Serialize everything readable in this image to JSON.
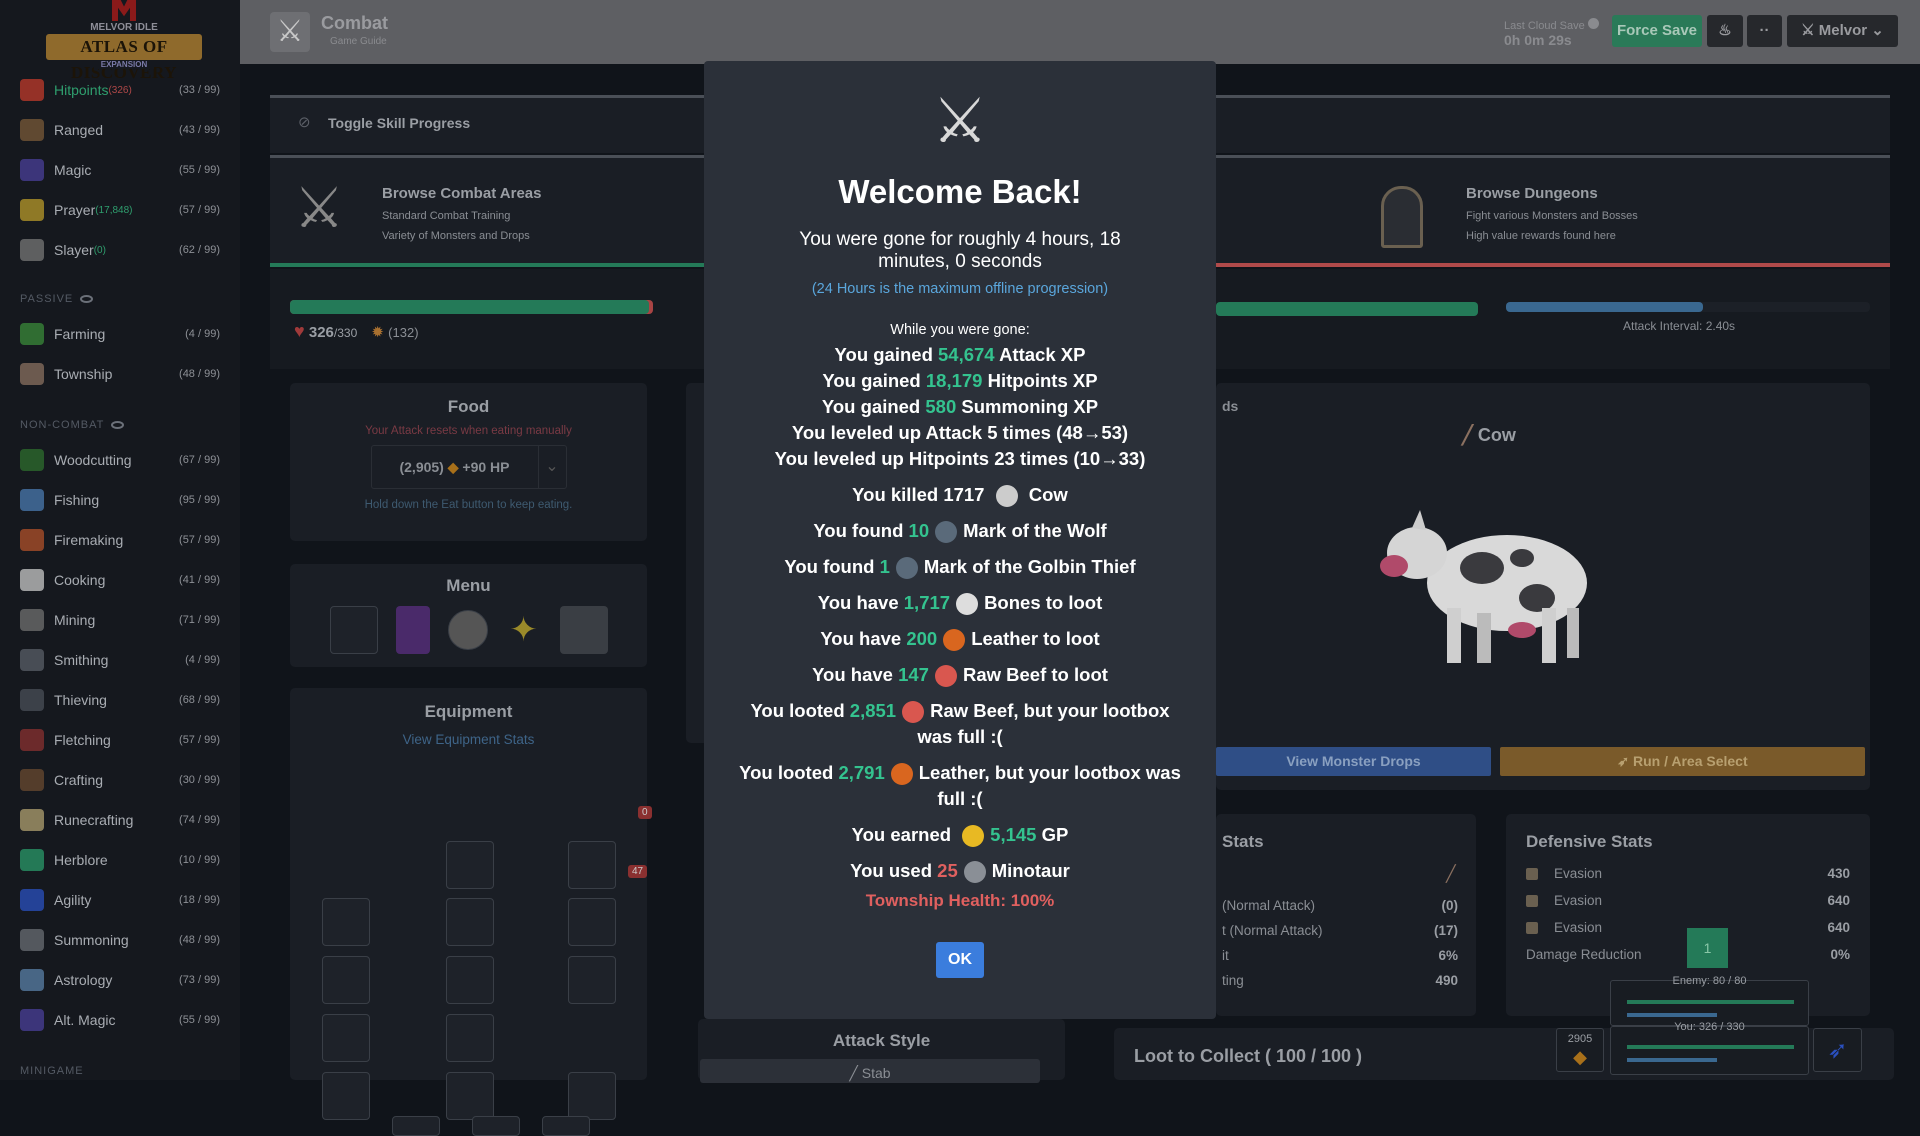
{
  "header": {
    "title": "Combat",
    "subtitle": "Game Guide",
    "cloud_label": "Last Cloud Save",
    "cloud_time": "0h 0m 29s",
    "force_save": "Force Save",
    "more": "··",
    "profile": "Melvor"
  },
  "logo": {
    "line1": "MELVOR IDLE",
    "line2": "ATLAS OF DISCOVERY",
    "line3": "EXPANSION"
  },
  "sidebar": {
    "combat": [
      {
        "label": "Hitpoints",
        "extra": "(326)",
        "extra_color": "#b04848",
        "label_color": "#2f9e6e",
        "level": "(33 / 99)",
        "icon": "heart-icon",
        "color": "#c0392b"
      },
      {
        "label": "Ranged",
        "level": "(43 / 99)",
        "icon": "bow-icon",
        "color": "#7a5a38"
      },
      {
        "label": "Magic",
        "level": "(55 / 99)",
        "icon": "wizard-hat-icon",
        "color": "#4a3f9a"
      },
      {
        "label": "Prayer",
        "extra": "(17,848)",
        "extra_color": "#2f9e6e",
        "level": "(57 / 99)",
        "icon": "sparkle-icon",
        "color": "#b89a2a"
      },
      {
        "label": "Slayer",
        "extra": "(0)",
        "extra_color": "#2f9e6e",
        "level": "(62 / 99)",
        "icon": "slayer-icon",
        "color": "#777"
      }
    ],
    "passive_title": "PASSIVE",
    "passive": [
      {
        "label": "Farming",
        "level": "(4 / 99)",
        "icon": "sprout-icon",
        "color": "#3a8a3a"
      },
      {
        "label": "Township",
        "level": "(48 / 99)",
        "icon": "township-icon",
        "color": "#8a7060"
      }
    ],
    "noncombat_title": "NON-COMBAT",
    "noncombat": [
      {
        "label": "Woodcutting",
        "level": "(67 / 99)",
        "icon": "tree-icon",
        "color": "#2d6e2d"
      },
      {
        "label": "Fishing",
        "level": "(95 / 99)",
        "icon": "fish-icon",
        "color": "#4a7ab0"
      },
      {
        "label": "Firemaking",
        "level": "(57 / 99)",
        "icon": "fire-icon",
        "color": "#b0502a"
      },
      {
        "label": "Cooking",
        "level": "(41 / 99)",
        "icon": "chef-hat-icon",
        "color": "#c8c8c8"
      },
      {
        "label": "Mining",
        "level": "(71 / 99)",
        "icon": "pickaxe-icon",
        "color": "#707070"
      },
      {
        "label": "Smithing",
        "level": "(4 / 99)",
        "icon": "anvil-icon",
        "color": "#5a5f68"
      },
      {
        "label": "Thieving",
        "level": "(68 / 99)",
        "icon": "thief-icon",
        "color": "#4a4f58"
      },
      {
        "label": "Fletching",
        "level": "(57 / 99)",
        "icon": "arrow-icon",
        "color": "#8a3030"
      },
      {
        "label": "Crafting",
        "level": "(30 / 99)",
        "icon": "hammer-icon",
        "color": "#6a4a30"
      },
      {
        "label": "Runecrafting",
        "level": "(74 / 99)",
        "icon": "rune-icon",
        "color": "#b0a070"
      },
      {
        "label": "Herblore",
        "level": "(10 / 99)",
        "icon": "leaf-icon",
        "color": "#2a9a6a"
      },
      {
        "label": "Agility",
        "level": "(18 / 99)",
        "icon": "runner-icon",
        "color": "#2a50c0"
      },
      {
        "label": "Summoning",
        "level": "(48 / 99)",
        "icon": "wolf-icon",
        "color": "#6a6e74"
      },
      {
        "label": "Astrology",
        "level": "(73 / 99)",
        "icon": "astrolabe-icon",
        "color": "#5a80a8"
      },
      {
        "label": "Alt. Magic",
        "level": "(55 / 99)",
        "icon": "wizard-hat-icon",
        "color": "#4a3f9a"
      }
    ],
    "minigame_title": "MINIGAME"
  },
  "main": {
    "toggle_progress": "Toggle Skill Progress",
    "areas": {
      "title": "Browse Combat Areas",
      "line1": "Standard Combat Training",
      "line2": "Variety of Monsters and Drops"
    },
    "dungeons": {
      "title": "Browse Dungeons",
      "line1": "Fight various Monsters and Bosses",
      "line2": "High value rewards found here"
    },
    "player_hp": "326",
    "player_hp_max": "/330",
    "prayer_points": "(132)",
    "player_hp_fraction": 0.988,
    "attack_interval": "Attack Interval: 2.40s",
    "enemy_attack_progress": 0.54,
    "food": {
      "title": "Food",
      "warning": "Your Attack resets when eating manually",
      "item_qty": "(2,905)",
      "item_heal": "+90 HP",
      "hint": "Hold down the Eat button to keep eating."
    },
    "menu_title": "Menu",
    "equipment": {
      "title": "Equipment",
      "link": "View Equipment Stats",
      "badge1": "0",
      "badge2": "47"
    },
    "enemy": {
      "partial_label": "ds",
      "name": "Cow",
      "view_drops": "View Monster Drops",
      "run": "Run / Area Select"
    },
    "offensive": {
      "title": "Stats",
      "rows": [
        {
          "label": "(Normal Attack)",
          "value": "(0)"
        },
        {
          "label": "t (Normal Attack)",
          "value": "(17)"
        },
        {
          "label": "it",
          "value": "6%"
        },
        {
          "label": "ting",
          "value": "490"
        }
      ]
    },
    "defensive": {
      "title": "Defensive Stats",
      "rows": [
        {
          "label": "Evasion",
          "value": "430",
          "icon": "sword-icon"
        },
        {
          "label": "Evasion",
          "value": "640",
          "icon": "bow-icon"
        },
        {
          "label": "Evasion",
          "value": "640",
          "icon": "wizard-hat-icon"
        },
        {
          "label": "Damage Reduction",
          "value": "0%"
        }
      ]
    },
    "green_badge": "1",
    "mini_enemy": "Enemy: 80 / 80",
    "mini_you": "You: 326 / 330",
    "mini_food": "2905",
    "loot": "Loot to Collect ( 100 / 100 )",
    "attack_style": {
      "title": "Attack Style",
      "option": "Stab"
    }
  },
  "modal": {
    "title": "Welcome Back!",
    "gone": "You were gone for roughly 4 hours, 18 minutes, 0 seconds",
    "note": "(24 Hours is the maximum offline progression)",
    "while": "While you were gone:",
    "lines": [
      [
        {
          "t": "You gained "
        },
        {
          "t": "54,674",
          "c": "g"
        },
        {
          "t": " Attack XP"
        }
      ],
      [
        {
          "t": "You gained "
        },
        {
          "t": "18,179",
          "c": "g"
        },
        {
          "t": " Hitpoints XP"
        }
      ],
      [
        {
          "t": "You gained "
        },
        {
          "t": "580",
          "c": "g"
        },
        {
          "t": " Summoning XP"
        }
      ],
      [
        {
          "t": "You leveled up Attack 5 times (48→53)"
        }
      ],
      [
        {
          "t": "You leveled up Hitpoints 23 times (10→33)"
        }
      ],
      [
        {
          "t": "You killed 1717 "
        },
        {
          "icon": "cow-icon",
          "col": "#ccc"
        },
        {
          "t": " Cow"
        }
      ],
      [
        {
          "t": "You found "
        },
        {
          "t": "10",
          "c": "g"
        },
        {
          "icon": "mark-icon",
          "col": "#5a6a7a"
        },
        {
          "t": "Mark of the Wolf"
        }
      ],
      [
        {
          "t": "You found "
        },
        {
          "t": "1",
          "c": "g"
        },
        {
          "icon": "mark-icon",
          "col": "#5a6a7a"
        },
        {
          "t": "Mark of the Golbin Thief"
        }
      ],
      [
        {
          "t": "You have "
        },
        {
          "t": "1,717",
          "c": "g"
        },
        {
          "icon": "bones-icon",
          "col": "#ddd"
        },
        {
          "t": "Bones to loot"
        }
      ],
      [
        {
          "t": "You have "
        },
        {
          "t": "200",
          "c": "g"
        },
        {
          "icon": "leather-icon",
          "col": "#d9661f"
        },
        {
          "t": "Leather to loot"
        }
      ],
      [
        {
          "t": "You have "
        },
        {
          "t": "147",
          "c": "g"
        },
        {
          "icon": "raw-beef-icon",
          "col": "#d9574f"
        },
        {
          "t": "Raw Beef to loot"
        }
      ],
      [
        {
          "t": "You looted "
        },
        {
          "t": "2,851",
          "c": "g"
        },
        {
          "icon": "raw-beef-icon",
          "col": "#d9574f"
        },
        {
          "t": "Raw Beef, but your lootbox was full :("
        }
      ],
      [
        {
          "t": "You looted "
        },
        {
          "t": "2,791",
          "c": "g"
        },
        {
          "icon": "leather-icon",
          "col": "#d9661f"
        },
        {
          "t": "Leather, but your lootbox was full :("
        }
      ],
      [
        {
          "t": "You earned "
        },
        {
          "icon": "gp-coins-icon",
          "col": "#e8b923"
        },
        {
          "t": "5,145",
          "c": "g"
        },
        {
          "t": " GP"
        }
      ],
      [
        {
          "t": "You used "
        },
        {
          "t": "25",
          "c": "r"
        },
        {
          "icon": "minotaur-icon",
          "col": "#8a8f96"
        },
        {
          "t": "Minotaur"
        }
      ]
    ],
    "township": "Township Health: 100%",
    "ok": "OK"
  },
  "colors": {
    "accent_green": "#34c38f",
    "ok_blue": "#3b7ddd",
    "warning_red": "#e0605f",
    "note_blue": "#5aa6dc"
  }
}
